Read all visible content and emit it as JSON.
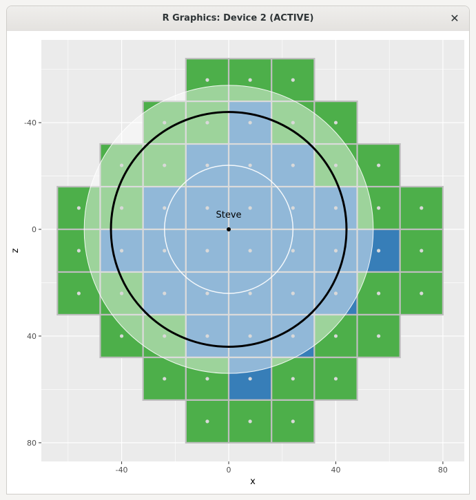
{
  "window": {
    "title": "R Graphics: Device 2 (ACTIVE)",
    "close_glyph": "✕",
    "close_icon": "close-icon"
  },
  "chart_data": {
    "type": "tile",
    "xlabel": "x",
    "ylabel": "z",
    "xlim": [
      -70,
      88
    ],
    "ylim": [
      -71,
      87
    ],
    "y_reversed": true,
    "x_ticks": [
      -40,
      0,
      40,
      80
    ],
    "y_ticks": [
      -40,
      0,
      40,
      80
    ],
    "grid": true,
    "tile_size": 16,
    "colors": {
      "panel": "#ebebeb",
      "gridline": "#ffffff",
      "tile_border": "#bebebe",
      "green": "#4daf4a",
      "dark_blue": "#377eb8",
      "light_green": "#acd7a8",
      "light_blue": "#9dc0df",
      "tile_center_point": "#d9d9d9",
      "circle_fill": "#ffffff",
      "circle_stroke": "#000000"
    },
    "tiles": [
      {
        "x": -8,
        "z": -56,
        "fill": "green"
      },
      {
        "x": 8,
        "z": -56,
        "fill": "green"
      },
      {
        "x": 24,
        "z": -56,
        "fill": "green"
      },
      {
        "x": -24,
        "z": -40,
        "fill": "green"
      },
      {
        "x": -8,
        "z": -40,
        "fill": "green"
      },
      {
        "x": 8,
        "z": -40,
        "fill": "dark_blue"
      },
      {
        "x": 24,
        "z": -40,
        "fill": "green"
      },
      {
        "x": 40,
        "z": -40,
        "fill": "green"
      },
      {
        "x": -40,
        "z": -24,
        "fill": "green"
      },
      {
        "x": -24,
        "z": -24,
        "fill": "green"
      },
      {
        "x": -8,
        "z": -24,
        "fill": "dark_blue"
      },
      {
        "x": 8,
        "z": -24,
        "fill": "dark_blue"
      },
      {
        "x": 24,
        "z": -24,
        "fill": "dark_blue"
      },
      {
        "x": 40,
        "z": -24,
        "fill": "green"
      },
      {
        "x": 56,
        "z": -24,
        "fill": "green"
      },
      {
        "x": -56,
        "z": -8,
        "fill": "green"
      },
      {
        "x": -40,
        "z": -8,
        "fill": "green"
      },
      {
        "x": -24,
        "z": -8,
        "fill": "dark_blue"
      },
      {
        "x": -8,
        "z": -8,
        "fill": "dark_blue"
      },
      {
        "x": 8,
        "z": -8,
        "fill": "dark_blue"
      },
      {
        "x": 24,
        "z": -8,
        "fill": "dark_blue"
      },
      {
        "x": 40,
        "z": -8,
        "fill": "dark_blue"
      },
      {
        "x": 56,
        "z": -8,
        "fill": "green"
      },
      {
        "x": 72,
        "z": -8,
        "fill": "green"
      },
      {
        "x": -56,
        "z": 8,
        "fill": "green"
      },
      {
        "x": -40,
        "z": 8,
        "fill": "dark_blue"
      },
      {
        "x": -24,
        "z": 8,
        "fill": "dark_blue"
      },
      {
        "x": -8,
        "z": 8,
        "fill": "dark_blue"
      },
      {
        "x": 8,
        "z": 8,
        "fill": "dark_blue"
      },
      {
        "x": 24,
        "z": 8,
        "fill": "dark_blue"
      },
      {
        "x": 40,
        "z": 8,
        "fill": "dark_blue"
      },
      {
        "x": 56,
        "z": 8,
        "fill": "dark_blue"
      },
      {
        "x": 72,
        "z": 8,
        "fill": "green"
      },
      {
        "x": -56,
        "z": 24,
        "fill": "green"
      },
      {
        "x": -40,
        "z": 24,
        "fill": "green"
      },
      {
        "x": -24,
        "z": 24,
        "fill": "dark_blue"
      },
      {
        "x": -8,
        "z": 24,
        "fill": "dark_blue"
      },
      {
        "x": 8,
        "z": 24,
        "fill": "dark_blue"
      },
      {
        "x": 24,
        "z": 24,
        "fill": "dark_blue"
      },
      {
        "x": 40,
        "z": 24,
        "fill": "dark_blue"
      },
      {
        "x": 56,
        "z": 24,
        "fill": "green"
      },
      {
        "x": 72,
        "z": 24,
        "fill": "green"
      },
      {
        "x": -40,
        "z": 40,
        "fill": "green"
      },
      {
        "x": -24,
        "z": 40,
        "fill": "green"
      },
      {
        "x": -8,
        "z": 40,
        "fill": "dark_blue"
      },
      {
        "x": 8,
        "z": 40,
        "fill": "dark_blue"
      },
      {
        "x": 24,
        "z": 40,
        "fill": "dark_blue"
      },
      {
        "x": 40,
        "z": 40,
        "fill": "green"
      },
      {
        "x": 56,
        "z": 40,
        "fill": "green"
      },
      {
        "x": -24,
        "z": 56,
        "fill": "green"
      },
      {
        "x": -8,
        "z": 56,
        "fill": "green"
      },
      {
        "x": 8,
        "z": 56,
        "fill": "dark_blue"
      },
      {
        "x": 24,
        "z": 56,
        "fill": "green"
      },
      {
        "x": 40,
        "z": 56,
        "fill": "green"
      },
      {
        "x": -8,
        "z": 72,
        "fill": "green"
      },
      {
        "x": 8,
        "z": 72,
        "fill": "green"
      },
      {
        "x": 24,
        "z": 72,
        "fill": "green"
      }
    ],
    "circles": [
      {
        "cx": 0,
        "cz": 0,
        "r": 54,
        "fill_opacity": 0.45,
        "stroke_opacity": 0.9,
        "stroke_width": 1
      },
      {
        "cx": 0,
        "cz": 0,
        "r": 24,
        "fill_opacity": 0,
        "stroke_opacity": 0.9,
        "stroke_width": 1.5
      },
      {
        "cx": 0,
        "cz": 0,
        "r": 44,
        "fill_opacity": 0,
        "stroke_opacity": 1,
        "stroke_width": 3
      }
    ],
    "player": {
      "name": "Steve",
      "x": 0,
      "z": 0
    }
  }
}
